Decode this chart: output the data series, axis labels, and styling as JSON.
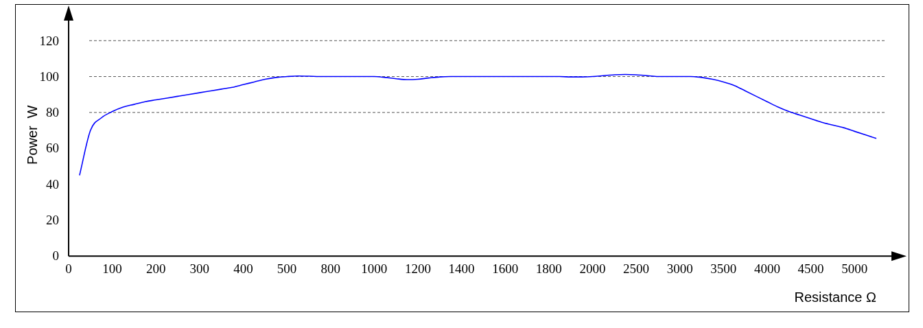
{
  "chart_data": {
    "type": "line",
    "xlabel": "Resistance Ω",
    "ylabel": "Power  W",
    "categories": [
      "0",
      null,
      null,
      null,
      "100",
      null,
      null,
      null,
      "200",
      null,
      null,
      null,
      "300",
      null,
      null,
      null,
      "400",
      null,
      null,
      null,
      "500",
      null,
      null,
      null,
      "800",
      null,
      null,
      null,
      "1000",
      null,
      null,
      null,
      "1200",
      null,
      null,
      null,
      "1400",
      null,
      null,
      null,
      "1600",
      null,
      null,
      null,
      "1800",
      null,
      null,
      null,
      "2000",
      null,
      null,
      null,
      "2500",
      null,
      null,
      null,
      "3000",
      null,
      null,
      null,
      "3500",
      null,
      null,
      null,
      "4000",
      null,
      null,
      null,
      "4500",
      null,
      null,
      null,
      "5000",
      null,
      null
    ],
    "series": [
      {
        "color": "#0000ff",
        "values": [
          null,
          45,
          70,
          77,
          80.5,
          83,
          84.5,
          86,
          87,
          88,
          89,
          90,
          91,
          92,
          93,
          94,
          95.5,
          97,
          98.5,
          99.5,
          100,
          100.3,
          100.2,
          100,
          100,
          100,
          100,
          100,
          100,
          99.5,
          98.8,
          98.3,
          98.5,
          99.2,
          99.8,
          100,
          100,
          100,
          100,
          100,
          100,
          100,
          100,
          100,
          100,
          100,
          99.8,
          99.8,
          100,
          100.5,
          101,
          101.2,
          101,
          100.5,
          100,
          100,
          100,
          100,
          99.5,
          98.5,
          97,
          95,
          92,
          89,
          86,
          83,
          80.5,
          78.5,
          76.5,
          74.5,
          73,
          71.5,
          69.5,
          67.5,
          65.5
        ]
      }
    ],
    "ylim": [
      0,
      135
    ],
    "yticks": [
      0,
      20,
      40,
      60,
      80,
      100,
      120
    ],
    "marker": "none",
    "line_style": "solid",
    "legend": false,
    "grid": false,
    "ref_lines": [
      {
        "axis": "y",
        "value": 80,
        "line_style": "dashed",
        "color": "#555555"
      },
      {
        "axis": "y",
        "value": 100,
        "line_style": "dashed",
        "color": "#555555"
      },
      {
        "axis": "y",
        "value": 120,
        "line_style": "dashed",
        "color": "#555555"
      }
    ]
  }
}
